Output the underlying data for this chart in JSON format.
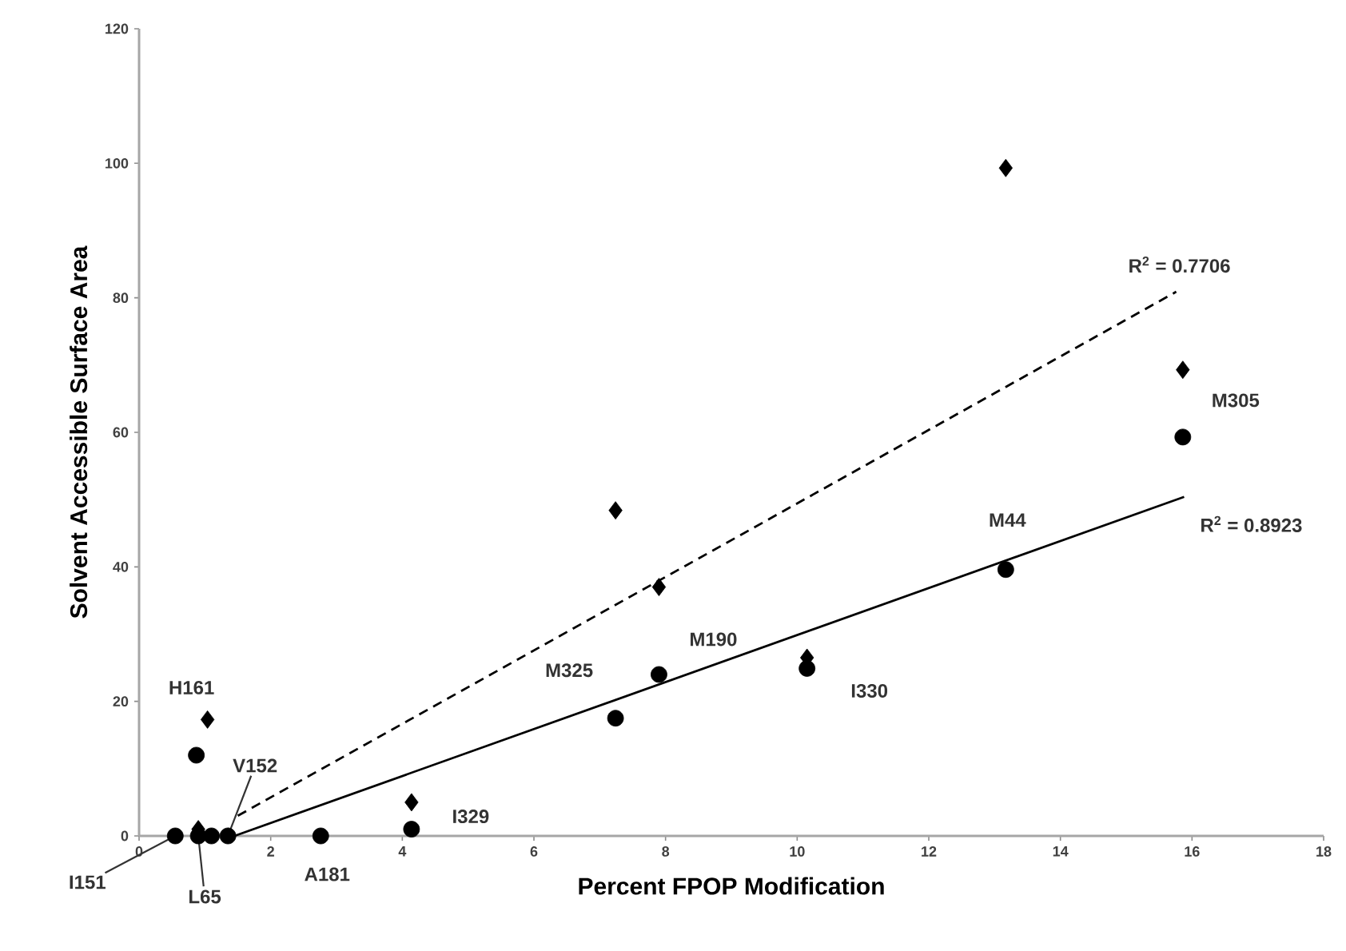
{
  "chart_data": {
    "type": "scatter",
    "xlabel": "Percent FPOP Modification",
    "ylabel": "Solvent Accessible Surface Area",
    "xlim": [
      0,
      18
    ],
    "ylim": [
      0,
      120
    ],
    "xticks": [
      0,
      2,
      4,
      6,
      8,
      10,
      12,
      14,
      16,
      18
    ],
    "yticks": [
      0,
      20,
      40,
      60,
      80,
      100,
      120
    ],
    "series": [
      {
        "marker": "circle",
        "color": "#000000",
        "x": [
          0.55,
          0.9,
          1.1,
          1.35,
          0.87,
          2.76,
          4.14,
          7.24,
          7.9,
          10.15,
          13.17,
          15.86
        ],
        "values": [
          0,
          0,
          0,
          0,
          12,
          0,
          1,
          17.5,
          24,
          24.9,
          39.6,
          59.3
        ]
      },
      {
        "marker": "diamond",
        "color": "#000000",
        "x": [
          0.9,
          1.04,
          4.14,
          7.24,
          7.9,
          10.15,
          13.17,
          15.86
        ],
        "values": [
          1,
          17.3,
          5,
          48.4,
          37,
          26.5,
          99.3,
          69.3
        ]
      },
      {
        "type": "line",
        "line_style": "solid",
        "marker": "none",
        "color": "#000000",
        "x": [
          1.45,
          15.88
        ],
        "values": [
          0,
          50.4
        ]
      },
      {
        "type": "line",
        "line_style": "dashed",
        "marker": "none",
        "color": "#000000",
        "x": [
          1.5,
          15.76
        ],
        "values": [
          3,
          80.9
        ]
      }
    ],
    "annotations": [
      {
        "text": "H161",
        "x": 1.04,
        "y": 17.3
      },
      {
        "text": "V152",
        "x": 1.35,
        "y": 0
      },
      {
        "text": "L65",
        "x": 0.9,
        "y": 0
      },
      {
        "text": "I151",
        "x": 0.55,
        "y": 0
      },
      {
        "text": "A181",
        "x": 2.76,
        "y": 0
      },
      {
        "text": "I329",
        "x": 4.14,
        "y": 1
      },
      {
        "text": "M325",
        "x": 7.24,
        "y": 17.5
      },
      {
        "text": "M190",
        "x": 7.9,
        "y": 24
      },
      {
        "text": "I330",
        "x": 10.15,
        "y": 24.9
      },
      {
        "text": "M44",
        "x": 13.17,
        "y": 39.6
      },
      {
        "text": "M305",
        "x": 15.86,
        "y": 59.3
      },
      {
        "text": "R$^{2}$ = 0.7706",
        "x": 15.76,
        "y": 80.9
      },
      {
        "text": "R$^{2}$ = 0.8923",
        "x": 15.88,
        "y": 50.4
      }
    ]
  }
}
